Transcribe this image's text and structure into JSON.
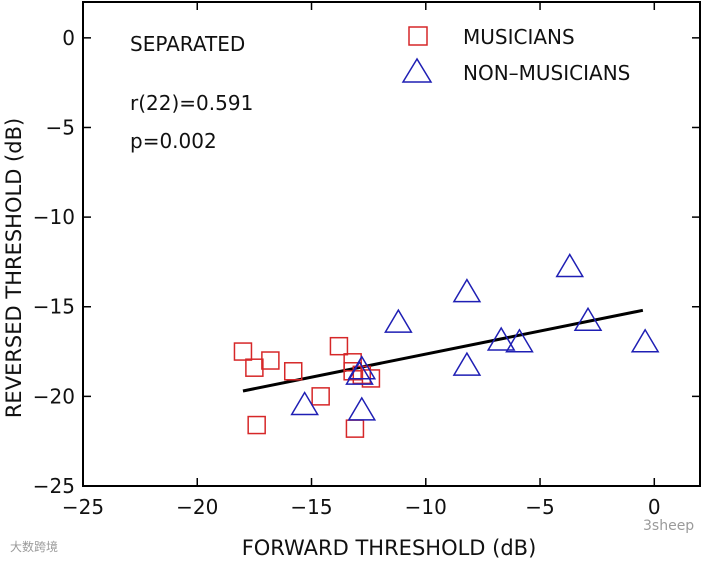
{
  "chart_data": {
    "type": "scatter",
    "xlabel": "FORWARD THRESHOLD (dB)",
    "ylabel": "REVERSED THRESHOLD (dB)",
    "xlim": [
      -25,
      2
    ],
    "ylim": [
      -25,
      2
    ],
    "xticks": [
      -25,
      -20,
      -15,
      -10,
      -5,
      0
    ],
    "yticks": [
      0,
      -5,
      -10,
      -15,
      -20,
      -25
    ],
    "tick_labels_x": [
      "−25",
      "−20",
      "−15",
      "−10",
      "−5",
      "0"
    ],
    "tick_labels_y": [
      "0",
      "−5",
      "−10",
      "−15",
      "−20",
      "−25"
    ],
    "grid": false,
    "legend_position": "top-right",
    "annotations": {
      "condition": "SEPARATED",
      "correlation": "r(22)=0.591",
      "p_value": "p=0.002"
    },
    "series": [
      {
        "name": "MUSICIANS",
        "marker": "square",
        "color": "#d62728",
        "points": [
          {
            "x": -18.0,
            "y": -17.5
          },
          {
            "x": -17.5,
            "y": -18.4
          },
          {
            "x": -16.8,
            "y": -18.0
          },
          {
            "x": -15.8,
            "y": -18.6
          },
          {
            "x": -13.8,
            "y": -17.2
          },
          {
            "x": -14.6,
            "y": -20.0
          },
          {
            "x": -13.2,
            "y": -18.1
          },
          {
            "x": -13.2,
            "y": -18.6
          },
          {
            "x": -12.8,
            "y": -18.8
          },
          {
            "x": -12.4,
            "y": -19.0
          },
          {
            "x": -13.1,
            "y": -21.8
          },
          {
            "x": -17.4,
            "y": -21.6
          }
        ]
      },
      {
        "name": "NON–MUSICIANS",
        "marker": "triangle",
        "color": "#1f1fb4",
        "points": [
          {
            "x": -15.3,
            "y": -20.4
          },
          {
            "x": -12.8,
            "y": -18.4
          },
          {
            "x": -12.9,
            "y": -18.7
          },
          {
            "x": -12.8,
            "y": -20.7
          },
          {
            "x": -11.2,
            "y": -15.8
          },
          {
            "x": -8.2,
            "y": -14.1
          },
          {
            "x": -8.2,
            "y": -18.2
          },
          {
            "x": -6.7,
            "y": -16.8
          },
          {
            "x": -5.9,
            "y": -16.9
          },
          {
            "x": -3.7,
            "y": -12.7
          },
          {
            "x": -2.9,
            "y": -15.7
          },
          {
            "x": -0.4,
            "y": -16.9
          }
        ]
      }
    ],
    "fit_line": {
      "x": [
        -18.0,
        -0.5
      ],
      "y": [
        -19.7,
        -15.2
      ],
      "color": "#000000"
    }
  },
  "watermarks": {
    "left": "大数跨境",
    "right": "3sheep"
  }
}
